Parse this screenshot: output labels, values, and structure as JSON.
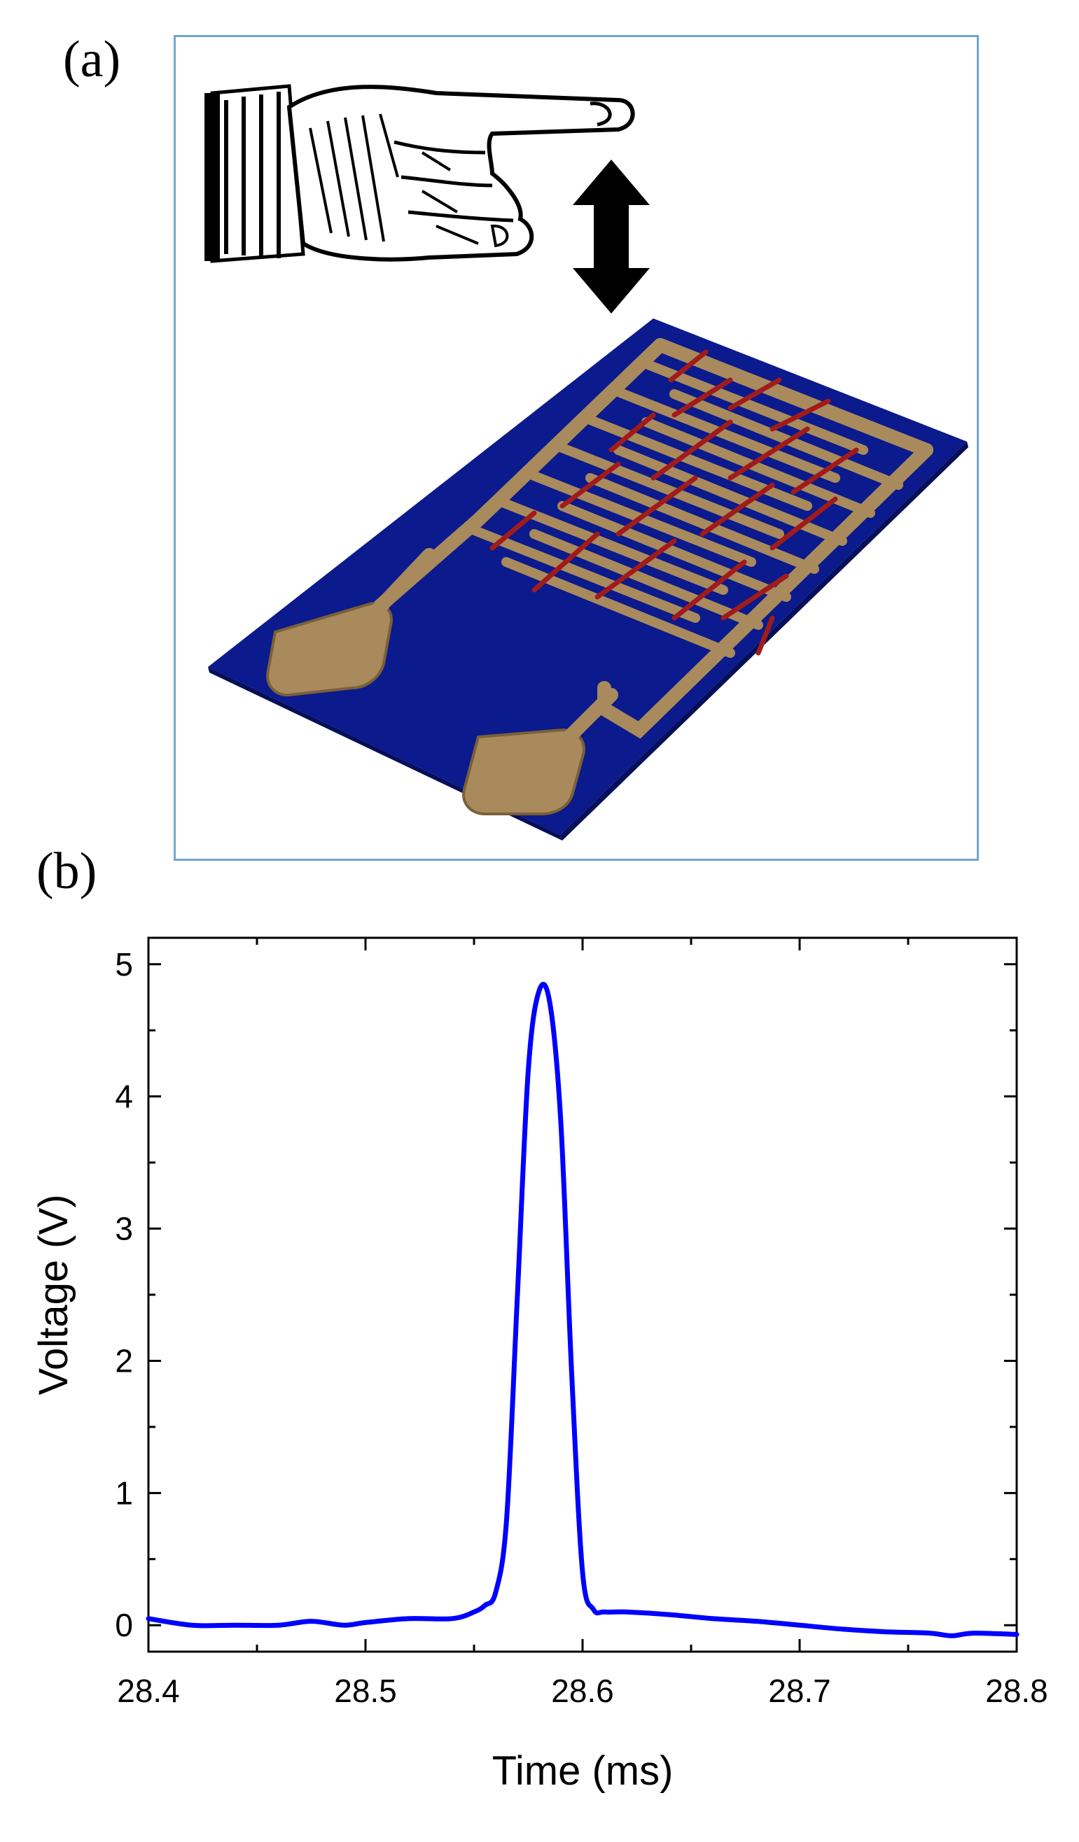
{
  "panels": {
    "a_label": "(a)",
    "b_label": "(b)"
  },
  "illustration": {
    "hand_icon": "pointing-hand-icon",
    "arrow_icon": "double-headed-arrow-icon",
    "sensor_icon": "interdigitated-electrode-sensor-icon",
    "substrate_color": "#0b1a8c",
    "electrode_color": "#a88a5c",
    "nanowire_color": "#a11b1b",
    "frame_color": "#6fa6cf"
  },
  "chart_data": {
    "type": "line",
    "title": "",
    "xlabel": "Time (ms)",
    "ylabel": "Voltage (V)",
    "xlim": [
      28.4,
      28.8
    ],
    "ylim": [
      -0.2,
      5.2
    ],
    "x_ticks": [
      "28.4",
      "28.5",
      "28.6",
      "28.7",
      "28.8"
    ],
    "y_ticks": [
      "0",
      "1",
      "2",
      "3",
      "4",
      "5"
    ],
    "grid": false,
    "legend": "none",
    "series": [
      {
        "color": "#0000ff",
        "x": [
          28.4,
          28.42,
          28.44,
          28.46,
          28.475,
          28.49,
          28.5,
          28.52,
          28.54,
          28.55,
          28.555,
          28.56,
          28.565,
          28.57,
          28.575,
          28.58,
          28.585,
          28.59,
          28.595,
          28.6,
          28.605,
          28.61,
          28.62,
          28.64,
          28.66,
          28.68,
          28.7,
          28.72,
          28.74,
          28.76,
          28.77,
          28.78,
          28.8
        ],
        "y": [
          0.05,
          0.0,
          0.0,
          0.0,
          0.03,
          0.0,
          0.02,
          0.05,
          0.05,
          0.1,
          0.15,
          0.25,
          0.8,
          2.5,
          4.2,
          4.8,
          4.7,
          3.8,
          1.9,
          0.4,
          0.12,
          0.1,
          0.1,
          0.08,
          0.05,
          0.03,
          0.0,
          -0.03,
          -0.05,
          -0.06,
          -0.08,
          -0.06,
          -0.07
        ]
      }
    ]
  }
}
